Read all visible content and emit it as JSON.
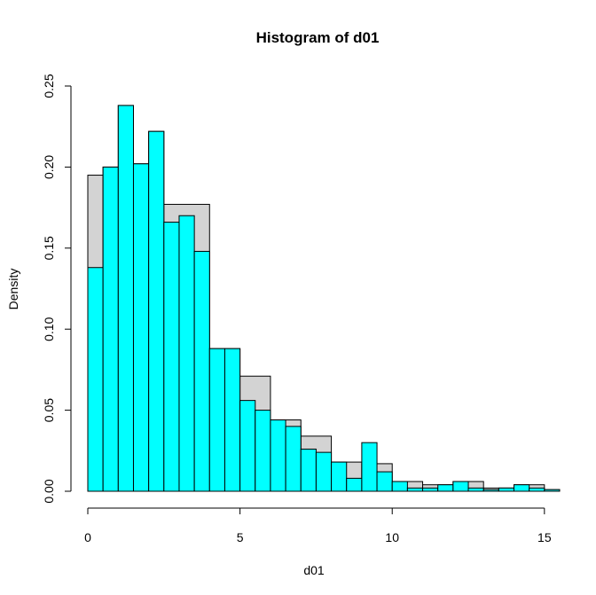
{
  "chart_data": {
    "type": "bar",
    "title": "Histogram of d01",
    "xlabel": "d01",
    "ylabel": "Density",
    "xlim": [
      0,
      15.5
    ],
    "ylim": [
      0,
      0.25
    ],
    "x_ticks": [
      0,
      5,
      10,
      15
    ],
    "x_tick_labels": [
      "0",
      "5",
      "10",
      "15"
    ],
    "y_ticks": [
      0.0,
      0.05,
      0.1,
      0.15,
      0.2,
      0.25
    ],
    "y_tick_labels": [
      "0.00",
      "0.05",
      "0.10",
      "0.15",
      "0.20",
      "0.25"
    ],
    "grid": false,
    "legend": "none",
    "series": [
      {
        "color": "#d3d3d3",
        "bins": [
          {
            "x0": 0,
            "x1": 0.5,
            "y": 0.195
          },
          {
            "x0": 0.5,
            "x1": 1,
            "y": 0.2
          },
          {
            "x0": 1,
            "x1": 1.5,
            "y": 0.238
          },
          {
            "x0": 1.5,
            "x1": 2,
            "y": 0.202
          },
          {
            "x0": 2,
            "x1": 2.5,
            "y": 0.222
          },
          {
            "x0": 2.5,
            "x1": 4,
            "y": 0.177
          },
          {
            "x0": 4,
            "x1": 5,
            "y": 0.088
          },
          {
            "x0": 5,
            "x1": 6,
            "y": 0.071
          },
          {
            "x0": 6,
            "x1": 7,
            "y": 0.044
          },
          {
            "x0": 7,
            "x1": 8,
            "y": 0.034
          },
          {
            "x0": 8,
            "x1": 9,
            "y": 0.018
          },
          {
            "x0": 9,
            "x1": 10,
            "y": 0.017
          },
          {
            "x0": 10,
            "x1": 11,
            "y": 0.006
          },
          {
            "x0": 11,
            "x1": 12,
            "y": 0.004
          },
          {
            "x0": 12,
            "x1": 13,
            "y": 0.006
          },
          {
            "x0": 13,
            "x1": 14,
            "y": 0.002
          },
          {
            "x0": 14,
            "x1": 15,
            "y": 0.004
          },
          {
            "x0": 15,
            "x1": 15.5,
            "y": 0.001
          }
        ]
      },
      {
        "color": "#00ffff",
        "bins": [
          {
            "x0": 0,
            "x1": 0.5,
            "y": 0.138
          },
          {
            "x0": 0.5,
            "x1": 1,
            "y": 0.2
          },
          {
            "x0": 1,
            "x1": 1.5,
            "y": 0.238
          },
          {
            "x0": 1.5,
            "x1": 2,
            "y": 0.202
          },
          {
            "x0": 2,
            "x1": 2.5,
            "y": 0.222
          },
          {
            "x0": 2.5,
            "x1": 3,
            "y": 0.166
          },
          {
            "x0": 3,
            "x1": 3.5,
            "y": 0.17
          },
          {
            "x0": 3.5,
            "x1": 4,
            "y": 0.148
          },
          {
            "x0": 4,
            "x1": 4.5,
            "y": 0.088
          },
          {
            "x0": 4.5,
            "x1": 5,
            "y": 0.088
          },
          {
            "x0": 5,
            "x1": 5.5,
            "y": 0.056
          },
          {
            "x0": 5.5,
            "x1": 6,
            "y": 0.05
          },
          {
            "x0": 6,
            "x1": 6.5,
            "y": 0.044
          },
          {
            "x0": 6.5,
            "x1": 7,
            "y": 0.04
          },
          {
            "x0": 7,
            "x1": 7.5,
            "y": 0.026
          },
          {
            "x0": 7.5,
            "x1": 8,
            "y": 0.024
          },
          {
            "x0": 8,
            "x1": 8.5,
            "y": 0.018
          },
          {
            "x0": 8.5,
            "x1": 9,
            "y": 0.008
          },
          {
            "x0": 9,
            "x1": 9.5,
            "y": 0.03
          },
          {
            "x0": 9.5,
            "x1": 10,
            "y": 0.012
          },
          {
            "x0": 10,
            "x1": 10.5,
            "y": 0.006
          },
          {
            "x0": 10.5,
            "x1": 11,
            "y": 0.002
          },
          {
            "x0": 11,
            "x1": 11.5,
            "y": 0.002
          },
          {
            "x0": 11.5,
            "x1": 12,
            "y": 0.004
          },
          {
            "x0": 12,
            "x1": 12.5,
            "y": 0.006
          },
          {
            "x0": 12.5,
            "x1": 13,
            "y": 0.002
          },
          {
            "x0": 13,
            "x1": 13.5,
            "y": 0.001
          },
          {
            "x0": 13.5,
            "x1": 14,
            "y": 0.002
          },
          {
            "x0": 14,
            "x1": 14.5,
            "y": 0.004
          },
          {
            "x0": 14.5,
            "x1": 15,
            "y": 0.002
          },
          {
            "x0": 15,
            "x1": 15.5,
            "y": 0.001
          }
        ]
      }
    ]
  }
}
